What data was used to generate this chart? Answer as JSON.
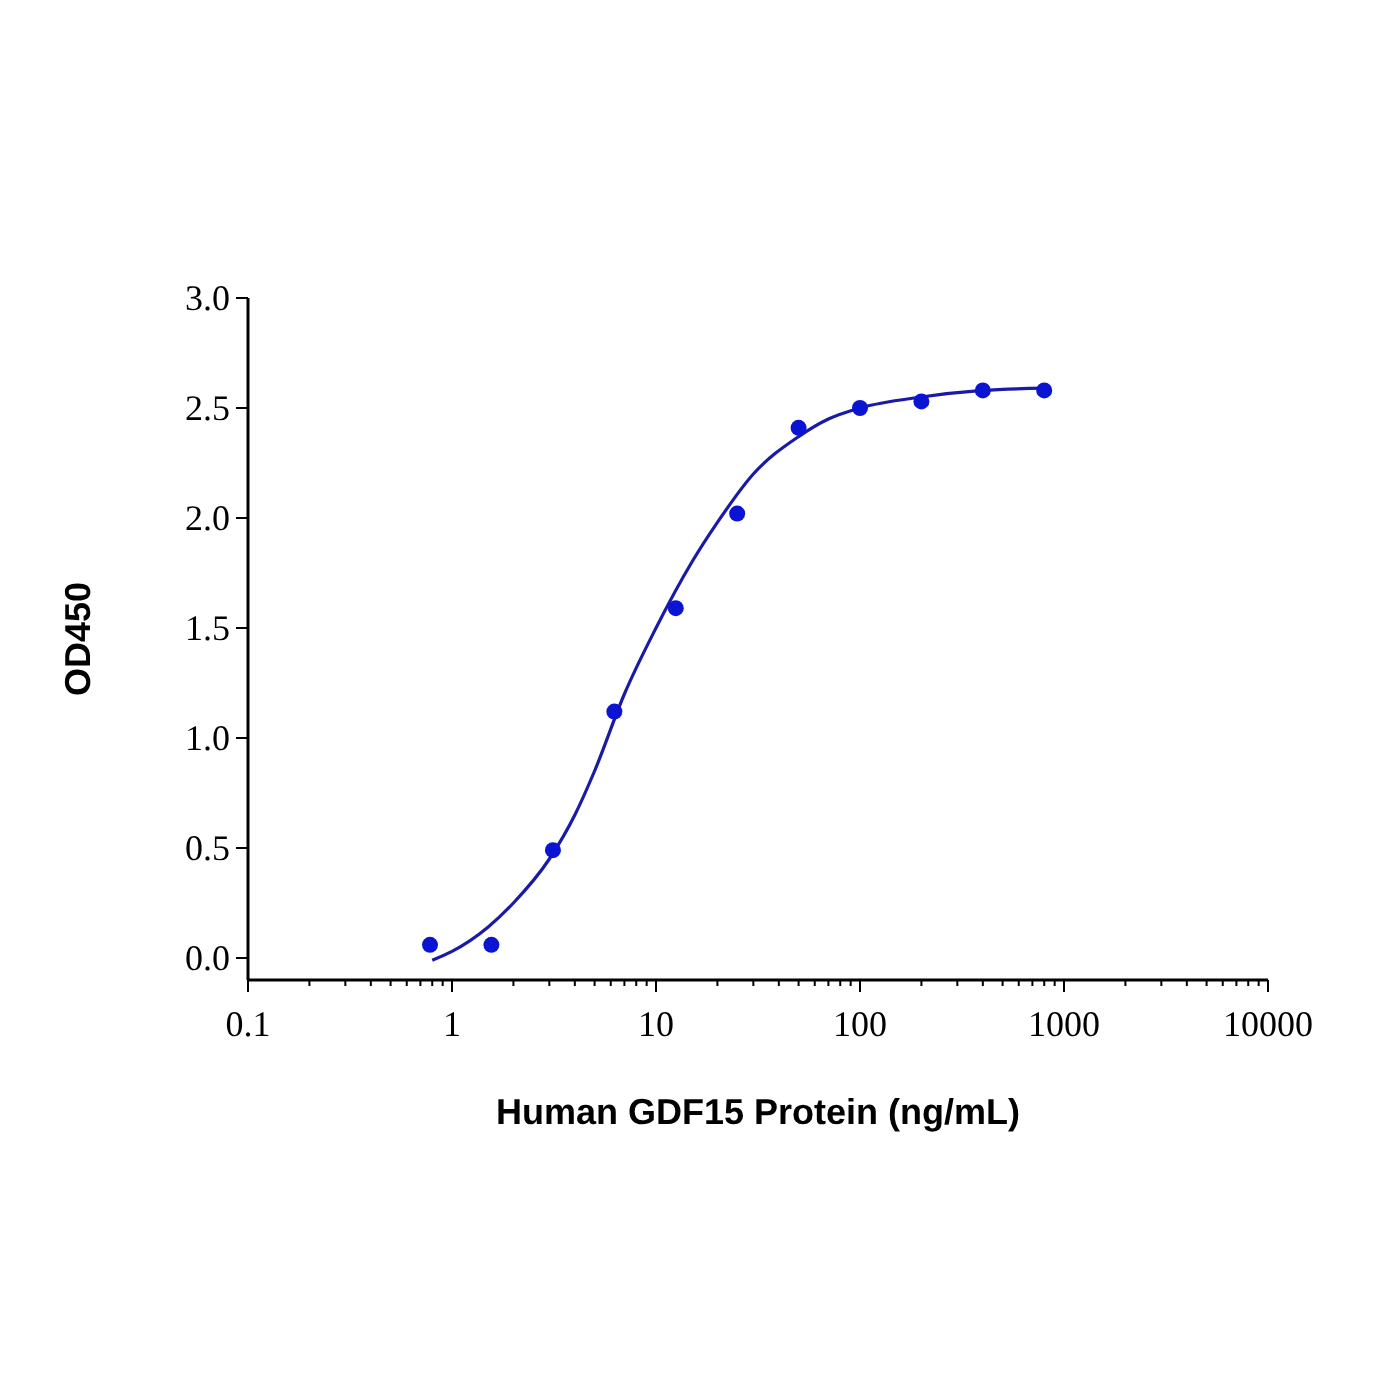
{
  "chart_data": {
    "type": "scatter",
    "xlabel": "Human GDF15 Protein (ng/mL)",
    "ylabel": "OD450",
    "log": "x",
    "xlim": [
      0.1,
      10000
    ],
    "ylim": [
      -0.1,
      3.0
    ],
    "xticks": [
      0.1,
      {
        "value": 0.2,
        "label": null
      },
      {
        "value": 0.3,
        "label": null
      },
      {
        "value": 0.4,
        "label": null
      },
      {
        "value": 0.5,
        "label": null
      },
      {
        "value": 0.6,
        "label": null
      },
      {
        "value": 0.7,
        "label": null
      },
      {
        "value": 0.8,
        "label": null
      },
      {
        "value": 0.9,
        "label": null
      },
      1,
      {
        "value": 2,
        "label": null
      },
      {
        "value": 3,
        "label": null
      },
      {
        "value": 4,
        "label": null
      },
      {
        "value": 5,
        "label": null
      },
      {
        "value": 6,
        "label": null
      },
      {
        "value": 7,
        "label": null
      },
      {
        "value": 8,
        "label": null
      },
      {
        "value": 9,
        "label": null
      },
      10,
      {
        "value": 20,
        "label": null
      },
      {
        "value": 30,
        "label": null
      },
      {
        "value": 40,
        "label": null
      },
      {
        "value": 50,
        "label": null
      },
      {
        "value": 60,
        "label": null
      },
      {
        "value": 70,
        "label": null
      },
      {
        "value": 80,
        "label": null
      },
      {
        "value": 90,
        "label": null
      },
      100,
      {
        "value": 200,
        "label": null
      },
      {
        "value": 300,
        "label": null
      },
      {
        "value": 400,
        "label": null
      },
      {
        "value": 500,
        "label": null
      },
      {
        "value": 600,
        "label": null
      },
      {
        "value": 700,
        "label": null
      },
      {
        "value": 800,
        "label": null
      },
      {
        "value": 900,
        "label": null
      },
      1000,
      {
        "value": 2000,
        "label": null
      },
      {
        "value": 3000,
        "label": null
      },
      {
        "value": 4000,
        "label": null
      },
      {
        "value": 5000,
        "label": null
      },
      {
        "value": 6000,
        "label": null
      },
      {
        "value": 7000,
        "label": null
      },
      {
        "value": 8000,
        "label": null
      },
      {
        "value": 9000,
        "label": null
      },
      10000
    ],
    "yticks": [
      {
        "value": 0,
        "label": "0.0"
      },
      0.5,
      {
        "value": 1,
        "label": "1.0"
      },
      1.5,
      {
        "value": 2,
        "label": "2.0"
      },
      2.5,
      {
        "value": 3,
        "label": "3.0"
      }
    ],
    "grid": false,
    "series": [
      {
        "marker": "circle",
        "color": "#0a14d2",
        "x": [
          0.78,
          1.56,
          3.125,
          6.25,
          12.5,
          25,
          50,
          100,
          200,
          400,
          800
        ],
        "values": [
          0.06,
          0.06,
          0.49,
          1.12,
          1.59,
          2.02,
          2.41,
          2.5,
          2.53,
          2.58,
          2.58
        ]
      },
      {
        "type": "line",
        "marker": "none",
        "line_style": "solid",
        "color": "#1a1aa8",
        "x": [
          0.8,
          1,
          1.5,
          2,
          3,
          4,
          5,
          7,
          10,
          15,
          20,
          30,
          50,
          70,
          100,
          200,
          400,
          800
        ],
        "values": [
          -0.01,
          0.03,
          0.14,
          0.25,
          0.45,
          0.65,
          0.85,
          1.2,
          1.5,
          1.8,
          1.98,
          2.2,
          2.37,
          2.45,
          2.5,
          2.55,
          2.58,
          2.59
        ]
      }
    ]
  }
}
